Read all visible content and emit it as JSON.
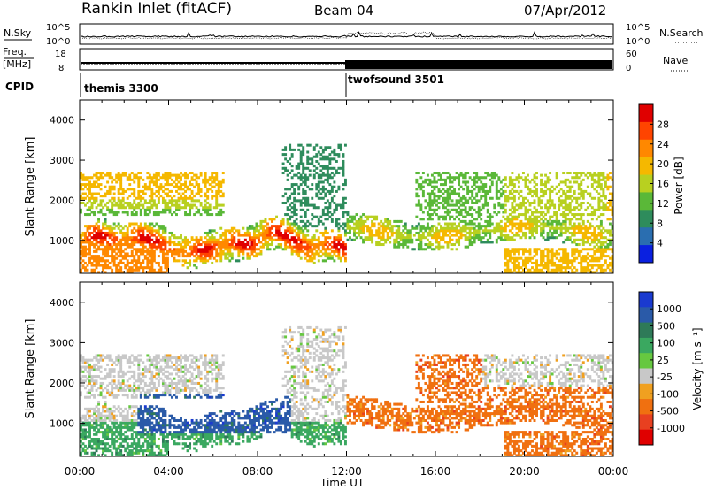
{
  "header": {
    "station": "Rankin Inlet (fitACF)",
    "beam": "Beam 04",
    "date": "07/Apr/2012"
  },
  "sky_strip": {
    "left_label": "N.Sky",
    "left_ticks": [
      "10^5",
      "10^0"
    ],
    "right_ticks": [
      "10^5",
      "10^0"
    ],
    "right_label": "N.Search"
  },
  "freq_strip": {
    "left_label_1": "Freq.",
    "left_label_2": "[MHz]",
    "left_ticks": [
      "18",
      "8"
    ],
    "right_ticks": [
      "60",
      "0"
    ],
    "right_label": "Nave"
  },
  "cpid": {
    "label": "CPID",
    "programs": [
      {
        "name": "themis 3300",
        "start_hour": 0
      },
      {
        "name": "twofsound 3501",
        "start_hour": 12
      }
    ]
  },
  "chart_data": [
    {
      "type": "heatmap",
      "panel": "power",
      "ylabel": "Slant Range [km]",
      "xlabel": "",
      "xlim_hours": [
        0,
        24
      ],
      "ylim_km": [
        180,
        4500
      ],
      "yticks": [
        "1000",
        "2000",
        "3000",
        "4000"
      ],
      "colorbar": {
        "label": "Power [dB]",
        "ticks": [
          "28",
          "24",
          "20",
          "16",
          "12",
          "8",
          "4"
        ],
        "colors": [
          "#e00000",
          "#ff4400",
          "#ff8800",
          "#f5b800",
          "#b8d020",
          "#5ab838",
          "#2e8c5c",
          "#2a6eb0",
          "#0a20e0"
        ]
      }
    },
    {
      "type": "heatmap",
      "panel": "velocity",
      "ylabel": "Slant Range [km]",
      "xlabel": "Time UT",
      "xlim_hours": [
        0,
        24
      ],
      "ylim_km": [
        180,
        4500
      ],
      "yticks": [
        "1000",
        "2000",
        "3000",
        "4000"
      ],
      "xticks": [
        "00:00",
        "04:00",
        "08:00",
        "12:00",
        "16:00",
        "20:00",
        "00:00"
      ],
      "colorbar": {
        "label": "Velocity [m s⁻¹]",
        "ticks": [
          "1000",
          "500",
          "100",
          "25",
          "-25",
          "-100",
          "-500",
          "-1000"
        ],
        "colors": [
          "#1a3ad0",
          "#2a5aa8",
          "#2e7a58",
          "#3aa860",
          "#66c840",
          "#c8c8c8",
          "#f0a020",
          "#f07010",
          "#e84020",
          "#e00000"
        ]
      }
    }
  ]
}
